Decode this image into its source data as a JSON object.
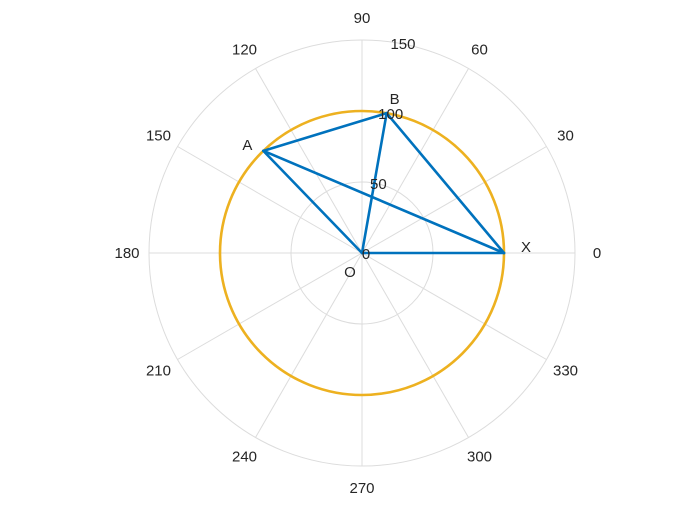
{
  "chart_data": {
    "type": "polar-line",
    "title": "",
    "theta_ticks": [
      "0",
      "30",
      "60",
      "90",
      "120",
      "150",
      "180",
      "210",
      "240",
      "270",
      "300",
      "330"
    ],
    "theta_tick_values": [
      0,
      30,
      60,
      90,
      120,
      150,
      180,
      210,
      240,
      270,
      300,
      330
    ],
    "r_ticks": [
      "0",
      "50",
      "100",
      "150"
    ],
    "r_tick_values": [
      0,
      50,
      100,
      150
    ],
    "rlim": [
      0,
      150
    ],
    "grid": true,
    "points": [
      {
        "label": "O",
        "theta": 0,
        "r": 0
      },
      {
        "label": "X",
        "theta": 0,
        "r": 100
      },
      {
        "label": "A",
        "theta": 134,
        "r": 100
      },
      {
        "label": "B",
        "theta": 80,
        "r": 100
      }
    ],
    "circle": {
      "r": 100,
      "color": "#EDB120"
    },
    "segments": [
      [
        "O",
        "X"
      ],
      [
        "X",
        "A"
      ],
      [
        "A",
        "B"
      ],
      [
        "B",
        "O"
      ],
      [
        "B",
        "X"
      ],
      [
        "O",
        "A"
      ]
    ],
    "line_color": "#0072BD",
    "grid_color": "#dcdcdc"
  }
}
